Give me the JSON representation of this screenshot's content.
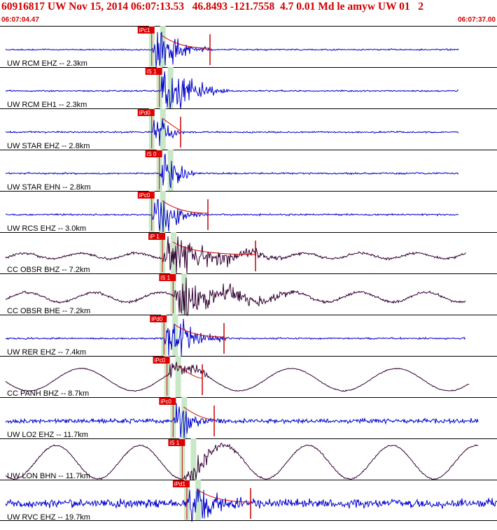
{
  "header": {
    "title": "60916817 UW Nov 15, 2014 06:07:13.53   46.8493 -121.7558  4.7 0.01 Md le amyw UW 01   2",
    "time_start": "06:07:04.47",
    "time_end": "06:07:37.00"
  },
  "colors": {
    "header_text": "#d00000",
    "trace_short_period": "#0000cc",
    "trace_broadband": "#330033",
    "pick_box": "#dd0000",
    "pick_window": "#c8e8c8",
    "coda_line": "#cc0000",
    "separator": "#000000"
  },
  "chart_data": {
    "type": "seismogram",
    "time_range": [
      "06:07:04.47",
      "06:07:37.00"
    ],
    "traces": [
      {
        "label": "UW RCM EHZ -- 2.3km",
        "pick": "iPc1",
        "pick_time": "06:07:14.4",
        "color": "blue"
      },
      {
        "label": "UW RCM EH1 -- 2.3km",
        "pick": "iS 1",
        "pick_time": "06:07:14.9",
        "color": "blue"
      },
      {
        "label": "UW STAR EHZ -- 2.8km",
        "pick": "iPd0",
        "pick_time": "06:07:14.4",
        "color": "blue"
      },
      {
        "label": "UW STAR EHN -- 2.8km",
        "pick": "iS 0",
        "pick_time": "06:07:14.9",
        "color": "blue"
      },
      {
        "label": "UW RCS EHZ -- 3.0km",
        "pick": "iPc0",
        "pick_time": "06:07:14.4",
        "color": "blue"
      },
      {
        "label": "CC OBSR BHZ -- 7.2km",
        "pick": "iP 1",
        "pick_time": "06:07:15.1",
        "color": "purple"
      },
      {
        "label": "CC OBSR BHE -- 7.2km",
        "pick": "iS 1",
        "pick_time": "06:07:15.8",
        "color": "purple"
      },
      {
        "label": "UW RER EHZ -- 7.4km",
        "pick": "iPd0",
        "pick_time": "06:07:15.2",
        "color": "blue"
      },
      {
        "label": "CC PANH BHZ -- 8.7km",
        "pick": "iPc0",
        "pick_time": "06:07:15.4",
        "color": "purple"
      },
      {
        "label": "UW LO2 EHZ -- 11.7km",
        "pick": "iPc0",
        "pick_time": "06:07:15.8",
        "color": "blue"
      },
      {
        "label": "UW LON BHN -- 11.7km",
        "pick": "iS 1",
        "pick_time": "06:07:16.4",
        "color": "purple"
      },
      {
        "label": "UW RVC EHZ -- 19.7km",
        "pick": "iPd1",
        "pick_time": "06:07:16.7",
        "color": "blue"
      }
    ]
  }
}
